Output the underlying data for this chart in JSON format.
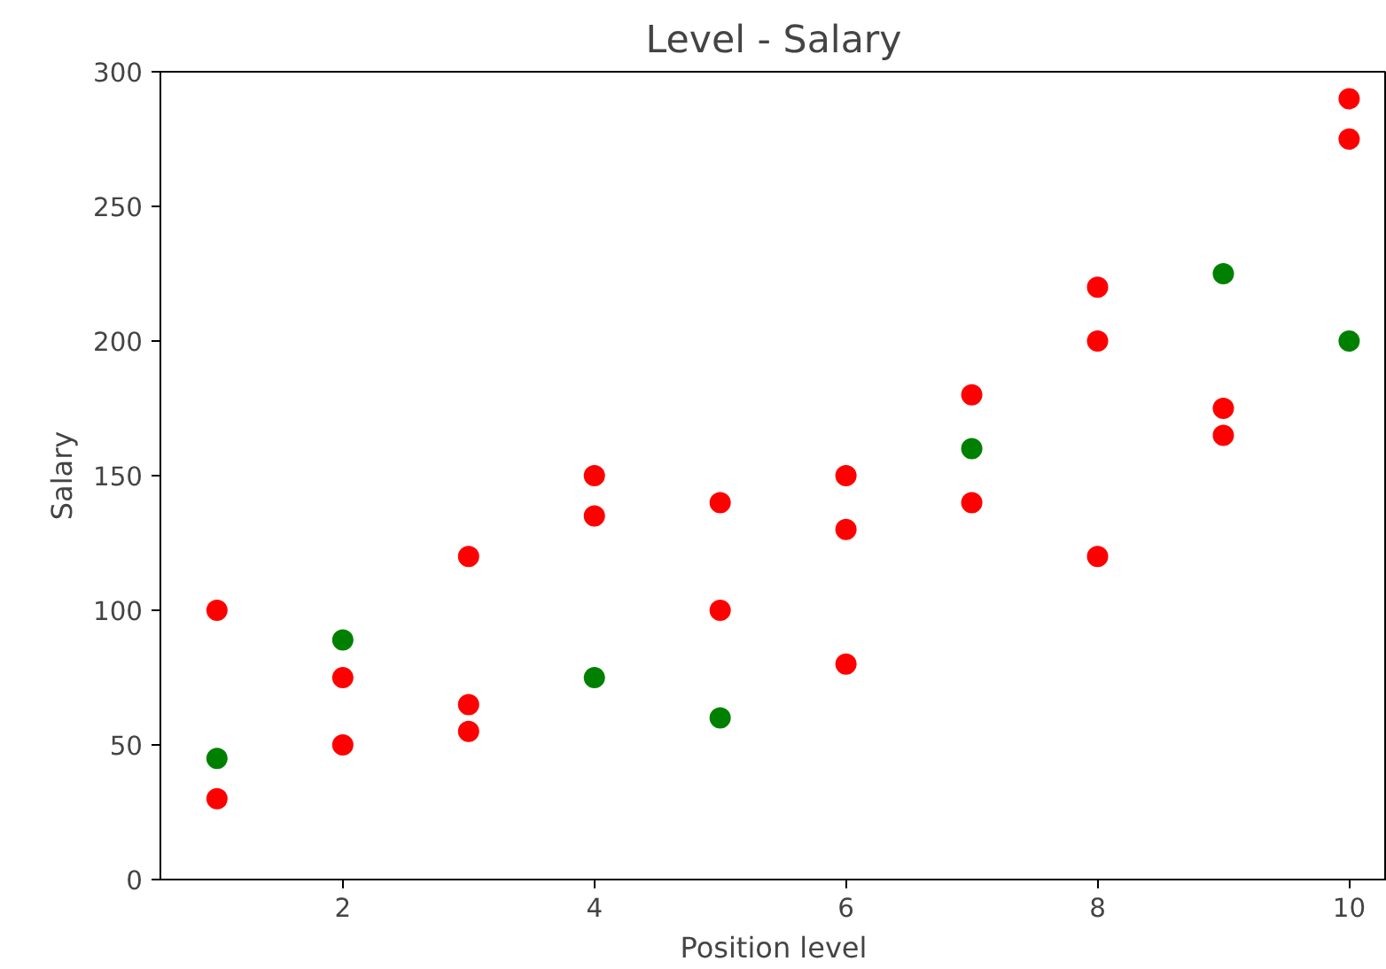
{
  "chart_data": {
    "type": "scatter",
    "title": "Level - Salary",
    "xlabel": "Position level",
    "ylabel": "Salary",
    "xlim": [
      0.55,
      10.3
    ],
    "ylim": [
      0,
      300
    ],
    "xticks": [
      2,
      4,
      6,
      8,
      10
    ],
    "yticks": [
      0,
      50,
      100,
      150,
      200,
      250,
      300
    ],
    "grid": false,
    "marker": "circle",
    "series": [
      {
        "color": "#ff0000",
        "x": [
          1,
          1,
          2,
          2,
          3,
          3,
          3,
          4,
          4,
          5,
          5,
          6,
          6,
          6,
          7,
          7,
          8,
          8,
          8,
          9,
          9,
          10,
          10
        ],
        "values": [
          100,
          30,
          75,
          50,
          120,
          65,
          55,
          150,
          135,
          140,
          100,
          150,
          130,
          80,
          180,
          140,
          220,
          200,
          120,
          175,
          165,
          290,
          275
        ]
      },
      {
        "color": "#008000",
        "x": [
          1,
          2,
          4,
          5,
          7,
          9,
          10
        ],
        "values": [
          45,
          89,
          75,
          60,
          160,
          225,
          200
        ]
      }
    ]
  }
}
